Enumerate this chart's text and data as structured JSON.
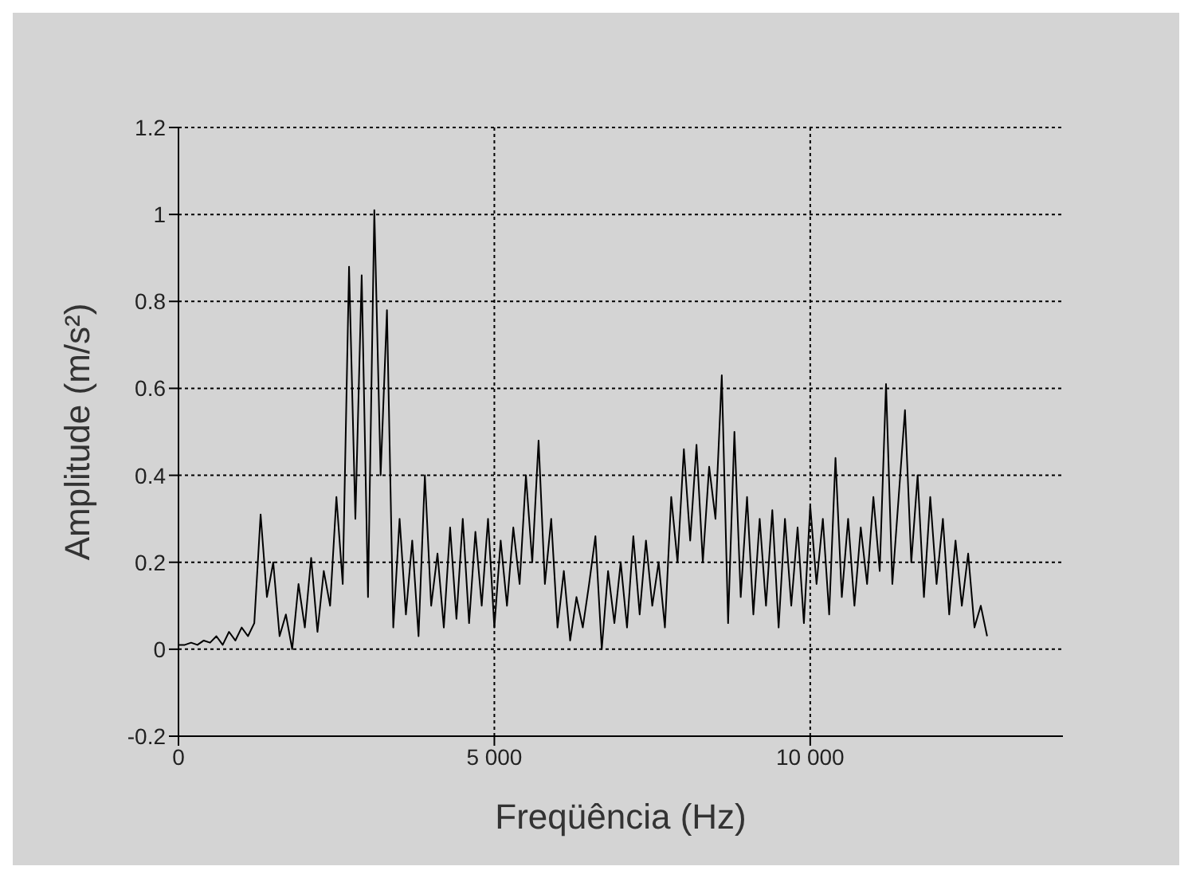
{
  "chart_data": {
    "type": "line",
    "xlabel": "Freqüência  (Hz)",
    "ylabel": "Amplitude (m/s²)",
    "x": [
      0,
      100,
      200,
      300,
      400,
      500,
      600,
      700,
      800,
      900,
      1000,
      1100,
      1200,
      1300,
      1400,
      1500,
      1600,
      1700,
      1800,
      1900,
      2000,
      2100,
      2200,
      2300,
      2400,
      2500,
      2600,
      2700,
      2800,
      2900,
      3000,
      3100,
      3200,
      3300,
      3400,
      3500,
      3600,
      3700,
      3800,
      3900,
      4000,
      4100,
      4200,
      4300,
      4400,
      4500,
      4600,
      4700,
      4800,
      4900,
      5000,
      5100,
      5200,
      5300,
      5400,
      5500,
      5600,
      5700,
      5800,
      5900,
      6000,
      6100,
      6200,
      6300,
      6400,
      6500,
      6600,
      6700,
      6800,
      6900,
      7000,
      7100,
      7200,
      7300,
      7400,
      7500,
      7600,
      7700,
      7800,
      7900,
      8000,
      8100,
      8200,
      8300,
      8400,
      8500,
      8600,
      8700,
      8800,
      8900,
      9000,
      9100,
      9200,
      9300,
      9400,
      9500,
      9600,
      9700,
      9800,
      9900,
      10000,
      10100,
      10200,
      10300,
      10400,
      10500,
      10600,
      10700,
      10800,
      10900,
      11000,
      11100,
      11200,
      11300,
      11400,
      11500,
      11600,
      11700,
      11800,
      11900,
      12000,
      12100,
      12200,
      12300,
      12400,
      12500,
      12600,
      12700,
      12800
    ],
    "series": [
      {
        "color": "#000000",
        "values": [
          0.01,
          0.01,
          0.015,
          0.01,
          0.02,
          0.015,
          0.03,
          0.01,
          0.04,
          0.02,
          0.05,
          0.03,
          0.06,
          0.31,
          0.12,
          0.2,
          0.03,
          0.08,
          0.0,
          0.15,
          0.05,
          0.21,
          0.04,
          0.18,
          0.1,
          0.35,
          0.15,
          0.88,
          0.3,
          0.86,
          0.12,
          1.01,
          0.4,
          0.78,
          0.05,
          0.3,
          0.08,
          0.25,
          0.03,
          0.4,
          0.1,
          0.22,
          0.05,
          0.28,
          0.07,
          0.3,
          0.06,
          0.27,
          0.1,
          0.3,
          0.05,
          0.25,
          0.1,
          0.28,
          0.15,
          0.4,
          0.2,
          0.48,
          0.15,
          0.3,
          0.05,
          0.18,
          0.02,
          0.12,
          0.05,
          0.15,
          0.26,
          0.0,
          0.18,
          0.06,
          0.2,
          0.05,
          0.26,
          0.08,
          0.25,
          0.1,
          0.2,
          0.05,
          0.35,
          0.2,
          0.46,
          0.25,
          0.47,
          0.2,
          0.42,
          0.3,
          0.63,
          0.06,
          0.5,
          0.12,
          0.35,
          0.08,
          0.3,
          0.1,
          0.32,
          0.05,
          0.3,
          0.1,
          0.28,
          0.06,
          0.33,
          0.15,
          0.3,
          0.08,
          0.44,
          0.12,
          0.3,
          0.1,
          0.28,
          0.15,
          0.35,
          0.18,
          0.61,
          0.15,
          0.35,
          0.55,
          0.2,
          0.4,
          0.12,
          0.35,
          0.15,
          0.3,
          0.08,
          0.25,
          0.1,
          0.22,
          0.05,
          0.1,
          0.03
        ]
      }
    ],
    "xlim": [
      0,
      14000
    ],
    "xticks": [
      0,
      {
        "value": 5000,
        "label": "5 000"
      },
      {
        "value": 10000,
        "label": "10 000"
      }
    ],
    "ylim": [
      -0.2,
      1.2
    ],
    "yticks": [
      -0.2,
      0,
      0.2,
      0.4,
      0.6,
      0.8,
      1,
      1.2
    ],
    "grid": true,
    "legend": false,
    "marker": "none",
    "line_style": "solid"
  }
}
